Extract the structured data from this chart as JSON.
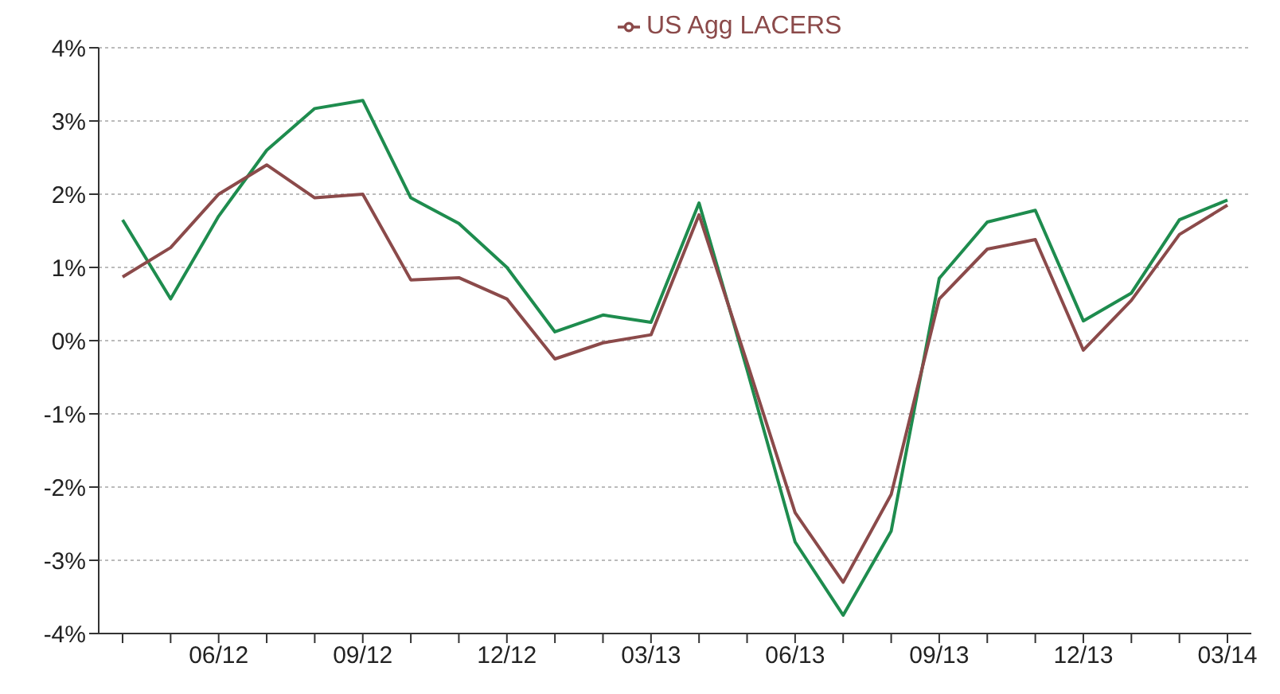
{
  "chart_data": {
    "type": "line",
    "categories": [
      null,
      null,
      "06/12",
      null,
      null,
      "09/12",
      null,
      null,
      "12/12",
      null,
      null,
      "03/13",
      null,
      null,
      "06/13",
      null,
      null,
      "09/13",
      null,
      null,
      "12/13",
      null,
      null,
      "03/14"
    ],
    "series": [
      {
        "color": "#1e8c4e",
        "values": [
          1.65,
          0.57,
          1.7,
          2.6,
          3.17,
          3.28,
          1.95,
          1.6,
          1.0,
          0.12,
          0.35,
          0.25,
          1.88,
          -0.4,
          -2.75,
          -3.75,
          -2.6,
          0.85,
          1.62,
          1.78,
          0.27,
          0.65,
          1.65,
          1.92
        ]
      },
      {
        "name": "US Agg LACERS",
        "color": "#8b4a4a",
        "values": [
          0.87,
          1.27,
          2.0,
          2.4,
          1.95,
          2.0,
          0.83,
          0.86,
          0.57,
          -0.25,
          -0.03,
          0.08,
          1.72,
          -0.3,
          -2.35,
          -3.3,
          -2.1,
          0.57,
          1.25,
          1.38,
          -0.13,
          0.55,
          1.45,
          1.85
        ]
      }
    ],
    "ylim": [
      -4,
      4
    ],
    "yticks": [
      {
        "value": -4,
        "label": "-4%"
      },
      {
        "value": -3,
        "label": "-3%"
      },
      {
        "value": -2,
        "label": "-2%"
      },
      {
        "value": -1,
        "label": "-1%"
      },
      {
        "value": 0,
        "label": "0%"
      },
      {
        "value": 1,
        "label": "1%"
      },
      {
        "value": 2,
        "label": "2%"
      },
      {
        "value": 3,
        "label": "3%"
      },
      {
        "value": 4,
        "label": "4%"
      }
    ],
    "grid": "y",
    "legend": "top",
    "marker": "none",
    "line_style": "solid"
  }
}
